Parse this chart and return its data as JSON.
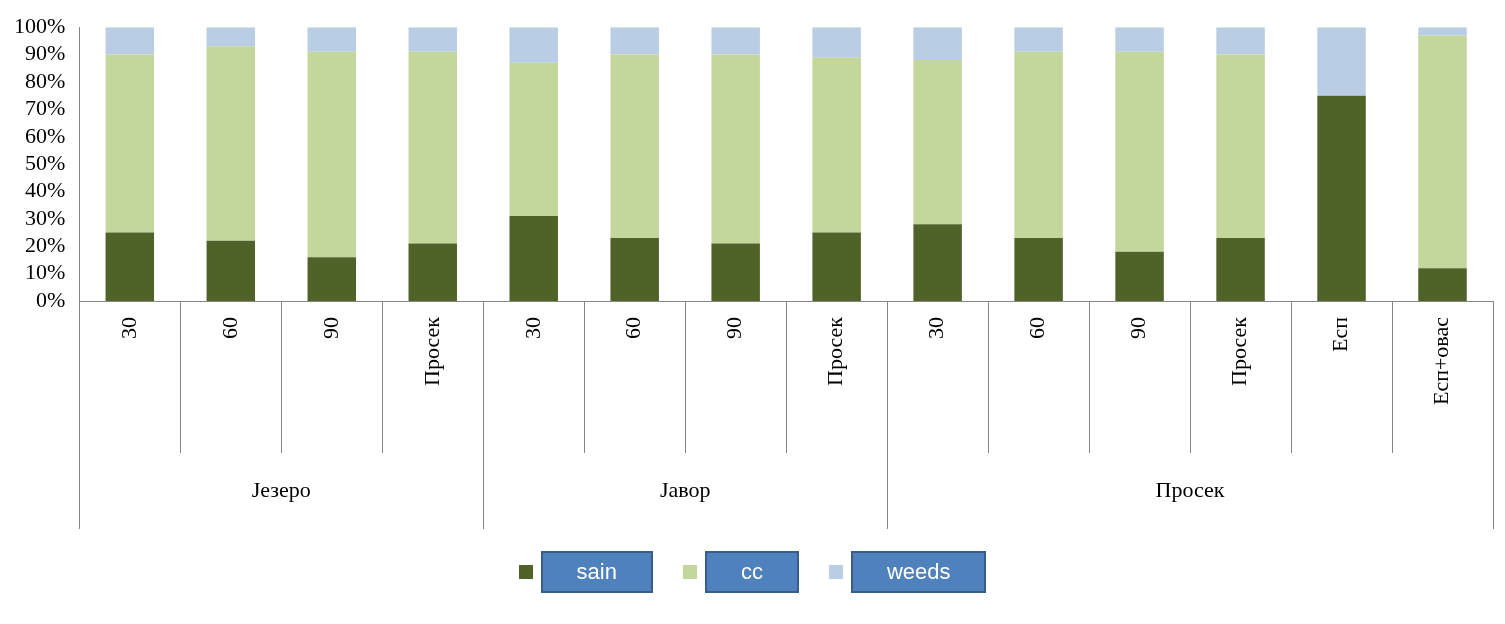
{
  "chart_data": {
    "type": "bar",
    "stacked": true,
    "categories": [
      "30",
      "60",
      "90",
      "Просек",
      "30",
      "60",
      "90",
      "Просек",
      "30",
      "60",
      "90",
      "Просек",
      "Есп",
      "Есп+овас"
    ],
    "series": [
      {
        "name": "sain",
        "color": "#4f6228",
        "values": [
          25,
          22,
          16,
          21,
          31,
          23,
          21,
          25,
          28,
          23,
          18,
          23,
          75,
          12
        ]
      },
      {
        "name": "cc",
        "color": "#c3d69b",
        "values": [
          65,
          71,
          75,
          70,
          56,
          67,
          69,
          64,
          60,
          68,
          73,
          67,
          0,
          85
        ]
      },
      {
        "name": "weeds",
        "color": "#b9cde5",
        "values": [
          10,
          7,
          9,
          9,
          13,
          10,
          10,
          11,
          12,
          9,
          9,
          10,
          25,
          3
        ]
      }
    ],
    "annotations": [
      "Језеро",
      "Јавор",
      "Просек"
    ],
    "ylim": [
      0,
      100
    ],
    "yticks": [
      {
        "value": 0,
        "label": "0%"
      },
      {
        "value": 10,
        "label": "10%"
      },
      {
        "value": 20,
        "label": "20%"
      },
      {
        "value": 30,
        "label": "30%"
      },
      {
        "value": 40,
        "label": "40%"
      },
      {
        "value": 50,
        "label": "50%"
      },
      {
        "value": 60,
        "label": "60%"
      },
      {
        "value": 70,
        "label": "70%"
      },
      {
        "value": 80,
        "label": "80%"
      },
      {
        "value": 90,
        "label": "90%"
      },
      {
        "value": 100,
        "label": "100%"
      }
    ],
    "grid": false,
    "legend": "bottom"
  }
}
